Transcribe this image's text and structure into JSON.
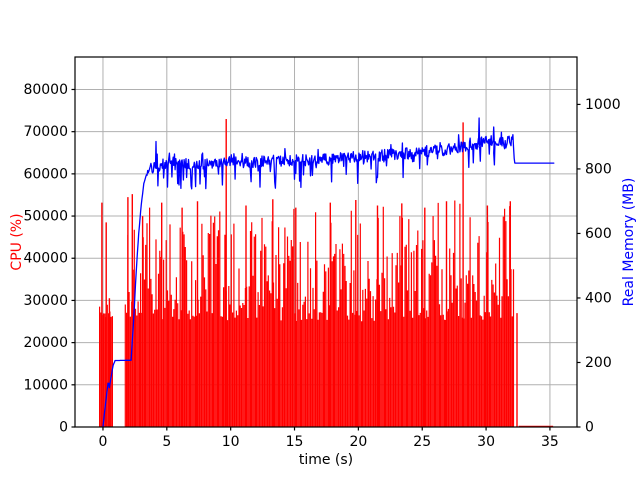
{
  "chart_data": {
    "type": "line",
    "title": "",
    "xlabel": "time (s)",
    "xlim": [
      -2.19,
      37.12
    ],
    "xticks": [
      0,
      5,
      10,
      15,
      20,
      25,
      30,
      35
    ],
    "grid": true,
    "grid_color": "#b0b0b0",
    "background": "#ffffff",
    "axes": {
      "left": {
        "label": "CPU (%)",
        "color": "#ff0000",
        "lim": [
          0,
          87700
        ],
        "ticks": [
          0,
          10000,
          20000,
          30000,
          40000,
          50000,
          60000,
          70000,
          80000
        ]
      },
      "right": {
        "label": "Real Memory (MB)",
        "color": "#0000ff",
        "lim": [
          0,
          1147
        ],
        "ticks": [
          0,
          200,
          400,
          600,
          800,
          1000
        ]
      }
    },
    "legend": {
      "visible": false
    },
    "series": [
      {
        "name": "CPU (%)",
        "axis": "left",
        "color": "#ff0000",
        "style": "dense-vertical-spikes",
        "sample_step": 0.1,
        "segments": [
          {
            "t0": -0.26,
            "t1": 0.81,
            "base": 26800,
            "jitter": 1200,
            "burst_prob": 0.25,
            "burst_max": 3500
          },
          {
            "t0": 1.75,
            "t1": 32.25,
            "base": 26500,
            "jitter": 1500,
            "burst_prob": 0.85,
            "burst_max": 26000
          }
        ],
        "spikes": [
          [
            -0.08,
            53200
          ],
          [
            0.25,
            48500
          ],
          [
            0.5,
            30500
          ],
          [
            1.95,
            54500
          ],
          [
            2.3,
            55200
          ],
          [
            3.1,
            50000
          ],
          [
            4.6,
            53200
          ],
          [
            6.2,
            52000
          ],
          [
            7.4,
            53500
          ],
          [
            9.65,
            73000
          ],
          [
            11.2,
            52500
          ],
          [
            13.3,
            54000
          ],
          [
            15.1,
            52000
          ],
          [
            17.8,
            53200
          ],
          [
            19.8,
            53800
          ],
          [
            21.5,
            52500
          ],
          [
            23.4,
            53000
          ],
          [
            25.2,
            52000
          ],
          [
            26.9,
            53500
          ],
          [
            28.2,
            72200
          ],
          [
            30.1,
            52500
          ],
          [
            31.9,
            53500
          ],
          [
            32.42,
            27000
          ]
        ],
        "zero_tail": [
          32.55,
          35.25
        ]
      },
      {
        "name": "Real Memory (MB)",
        "axis": "right",
        "color": "#0000ff",
        "style": "noisy-line",
        "sample_step": 0.05,
        "trend": [
          [
            0,
            0
          ],
          [
            0.15,
            55
          ],
          [
            0.3,
            105
          ],
          [
            0.42,
            142
          ],
          [
            0.5,
            122
          ],
          [
            0.65,
            158
          ],
          [
            0.8,
            192
          ],
          [
            0.95,
            206
          ],
          [
            2.2,
            207
          ],
          [
            2.4,
            330
          ],
          [
            2.6,
            480
          ],
          [
            2.8,
            600
          ],
          [
            3.0,
            690
          ],
          [
            3.2,
            755
          ],
          [
            3.5,
            795
          ],
          [
            4.5,
            812
          ],
          [
            8,
            818
          ],
          [
            12,
            823
          ],
          [
            16,
            828
          ],
          [
            20,
            838
          ],
          [
            24,
            848
          ],
          [
            27.5,
            862
          ],
          [
            29,
            872
          ],
          [
            30,
            884
          ],
          [
            30.8,
            893
          ],
          [
            31.4,
            876
          ],
          [
            31.8,
            890
          ],
          [
            32.1,
            906
          ],
          [
            32.22,
            818
          ],
          [
            35.3,
            818
          ]
        ],
        "noise": {
          "start": 3.4,
          "end": 32.1,
          "amp": 18,
          "dip_prob": 0.12,
          "dip_max": 70,
          "peak_prob": 0.06,
          "peak_max": 35
        },
        "spikes": [
          [
            4.15,
            885
          ],
          [
            29.45,
            958
          ],
          [
            30.6,
            930
          ]
        ]
      }
    ]
  }
}
